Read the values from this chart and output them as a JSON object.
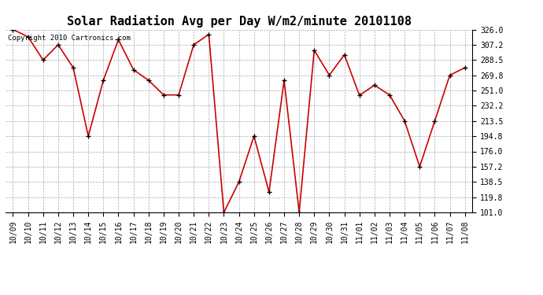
{
  "title": "Solar Radiation Avg per Day W/m2/minute 20101108",
  "copyright_text": "Copyright 2010 Cartronics.com",
  "x_labels": [
    "10/09",
    "10/10",
    "10/11",
    "10/12",
    "10/13",
    "10/14",
    "10/15",
    "10/16",
    "10/17",
    "10/18",
    "10/19",
    "10/20",
    "10/21",
    "10/22",
    "10/23",
    "10/24",
    "10/25",
    "10/26",
    "10/27",
    "10/28",
    "10/29",
    "10/30",
    "10/31",
    "11/01",
    "11/02",
    "11/03",
    "11/04",
    "11/05",
    "11/06",
    "11/07",
    "11/08"
  ],
  "y_values": [
    326.0,
    317.0,
    288.5,
    307.2,
    279.0,
    194.8,
    263.5,
    313.5,
    276.5,
    263.5,
    245.5,
    245.5,
    307.2,
    320.0,
    101.0,
    138.5,
    194.8,
    126.0,
    263.5,
    101.0,
    300.5,
    269.8,
    295.0,
    245.0,
    257.5,
    245.5,
    213.5,
    157.2,
    213.5,
    269.8,
    279.0
  ],
  "line_color": "#cc0000",
  "marker_color": "#000000",
  "background_color": "#ffffff",
  "grid_color": "#aaaaaa",
  "ylim": [
    101.0,
    326.0
  ],
  "yticks": [
    101.0,
    119.8,
    138.5,
    157.2,
    176.0,
    194.8,
    213.5,
    232.2,
    251.0,
    269.8,
    288.5,
    307.2,
    326.0
  ],
  "title_fontsize": 11,
  "tick_fontsize": 7,
  "copyright_fontsize": 6.5
}
